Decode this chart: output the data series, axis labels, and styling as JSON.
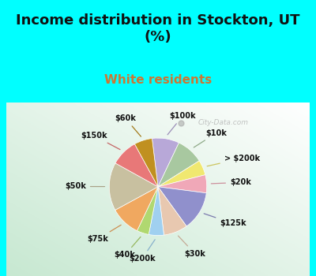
{
  "title": "Income distribution in Stockton, UT\n(%)",
  "subtitle": "White residents",
  "background_cyan": "#00FFFF",
  "labels": [
    "$100k",
    "$10k",
    "> $200k",
    "$20k",
    "$125k",
    "$30k",
    "$200k",
    "$40k",
    "$75k",
    "$50k",
    "$150k",
    "$60k"
  ],
  "sizes": [
    9,
    9,
    5,
    6,
    13,
    8,
    5,
    4,
    10,
    16,
    9,
    6
  ],
  "colors": [
    "#b8a8d8",
    "#a8c8a0",
    "#f0e870",
    "#f0a8b8",
    "#9090cc",
    "#e8c8b0",
    "#a0d0f0",
    "#b0d870",
    "#f0a860",
    "#c8c0a0",
    "#e87878",
    "#c09020"
  ],
  "startangle": 97,
  "title_fontsize": 13,
  "subtitle_fontsize": 11,
  "subtitle_color": "#cc7733",
  "label_fontsize": 7,
  "watermark": "City-Data.com"
}
